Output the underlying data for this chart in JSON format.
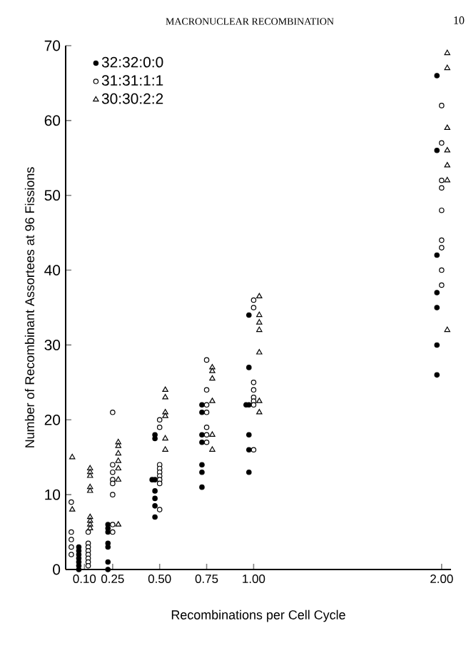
{
  "chart_data": {
    "type": "scatter",
    "title": "MACRONUCLEAR RECOMBINATION",
    "xlabel": "Recombinations per Cell Cycle",
    "ylabel": "Number of Recombinant Assortees at 96 Fissions",
    "annotations": [
      "10"
    ],
    "xlim": [
      0,
      2.05
    ],
    "ylim": [
      0,
      70
    ],
    "xticks": [
      {
        "value": 0.1,
        "label": "0.10"
      },
      {
        "value": 0.25,
        "label": "0.25"
      },
      {
        "value": 0.5,
        "label": "0.50"
      },
      {
        "value": 0.75,
        "label": "0.75"
      },
      {
        "value": 1.0,
        "label": "1.00"
      },
      {
        "value": 2.0,
        "label": "2.00"
      }
    ],
    "yticks": [
      0,
      10,
      20,
      30,
      40,
      50,
      60,
      70
    ],
    "legend": "top left",
    "grid": false,
    "series": [
      {
        "name": "32:32:0:0",
        "color": "#000000",
        "marker": "circle",
        "x": [
          0.07,
          0.07,
          0.07,
          0.07,
          0.07,
          0.07,
          0.07,
          0.225,
          0.225,
          0.225,
          0.225,
          0.225,
          0.225,
          0.225,
          0.475,
          0.475,
          0.475,
          0.46,
          0.475,
          0.475,
          0.475,
          0.475,
          0.725,
          0.725,
          0.725,
          0.725,
          0.725,
          0.725,
          0.725,
          0.975,
          0.975,
          0.975,
          0.96,
          0.975,
          0.975,
          0.975,
          1.975,
          1.975,
          1.975,
          1.975,
          1.975,
          1.975,
          1.975
        ],
        "values": [
          3,
          2.5,
          2,
          1.5,
          1,
          0.5,
          0,
          6,
          5.5,
          5,
          3.5,
          3,
          1,
          0,
          18,
          17.5,
          12,
          12,
          10.5,
          9.5,
          8.5,
          7,
          22,
          21,
          18,
          17,
          14,
          13,
          11,
          34,
          27,
          22,
          22,
          18,
          16,
          13,
          66,
          56,
          42,
          37,
          35,
          30,
          26
        ]
      },
      {
        "name": "31:31:1:1",
        "color": "#ffffff",
        "marker": "circle",
        "x": [
          0.03,
          0.03,
          0.03,
          0.03,
          0.03,
          0.12,
          0.12,
          0.12,
          0.12,
          0.12,
          0.12,
          0.12,
          0.12,
          0.25,
          0.25,
          0.25,
          0.25,
          0.25,
          0.25,
          0.25,
          0.25,
          0.5,
          0.5,
          0.5,
          0.5,
          0.5,
          0.5,
          0.5,
          0.5,
          0.5,
          0.75,
          0.75,
          0.75,
          0.75,
          0.75,
          0.75,
          0.75,
          1.0,
          1.0,
          1.0,
          1.0,
          1.0,
          1.0,
          1.0,
          1.0,
          2.0,
          2.0,
          2.0,
          2.0,
          2.0,
          2.0,
          2.0,
          2.0,
          2.0
        ],
        "values": [
          9,
          5,
          4,
          3,
          2,
          5,
          3.5,
          3,
          2.5,
          2,
          1.5,
          1,
          0.5,
          21,
          14,
          13,
          12,
          11.5,
          10,
          6,
          5,
          20,
          19,
          14,
          13.5,
          13,
          12.5,
          12,
          11.5,
          8,
          28,
          24,
          22,
          21,
          19,
          18,
          17,
          36,
          35,
          25,
          24,
          23,
          22.5,
          22,
          16,
          62,
          57,
          52,
          51,
          48,
          44,
          43,
          40,
          38
        ]
      },
      {
        "name": "30:30:2:2",
        "color": "#ffffff",
        "marker": "triangle",
        "x": [
          0.035,
          0.035,
          0.13,
          0.13,
          0.13,
          0.13,
          0.13,
          0.13,
          0.13,
          0.13,
          0.13,
          0.28,
          0.28,
          0.28,
          0.28,
          0.28,
          0.28,
          0.28,
          0.53,
          0.53,
          0.53,
          0.53,
          0.53,
          0.53,
          0.78,
          0.78,
          0.78,
          0.78,
          0.78,
          0.78,
          1.03,
          1.03,
          1.03,
          1.03,
          1.03,
          1.03,
          1.03,
          2.03,
          2.03,
          2.03,
          2.03,
          2.03,
          2.03,
          2.03
        ],
        "values": [
          15,
          8,
          13.5,
          13,
          12.5,
          11,
          10.5,
          7,
          6.5,
          6,
          5.5,
          17,
          16.5,
          15.5,
          14.5,
          13.5,
          12,
          6,
          24,
          23,
          21,
          20.5,
          17.5,
          16,
          27,
          26.5,
          25.5,
          22.5,
          18,
          16,
          36.5,
          34,
          33,
          32,
          29,
          22.5,
          21,
          69,
          67,
          59,
          56,
          54,
          52,
          32
        ]
      }
    ]
  }
}
